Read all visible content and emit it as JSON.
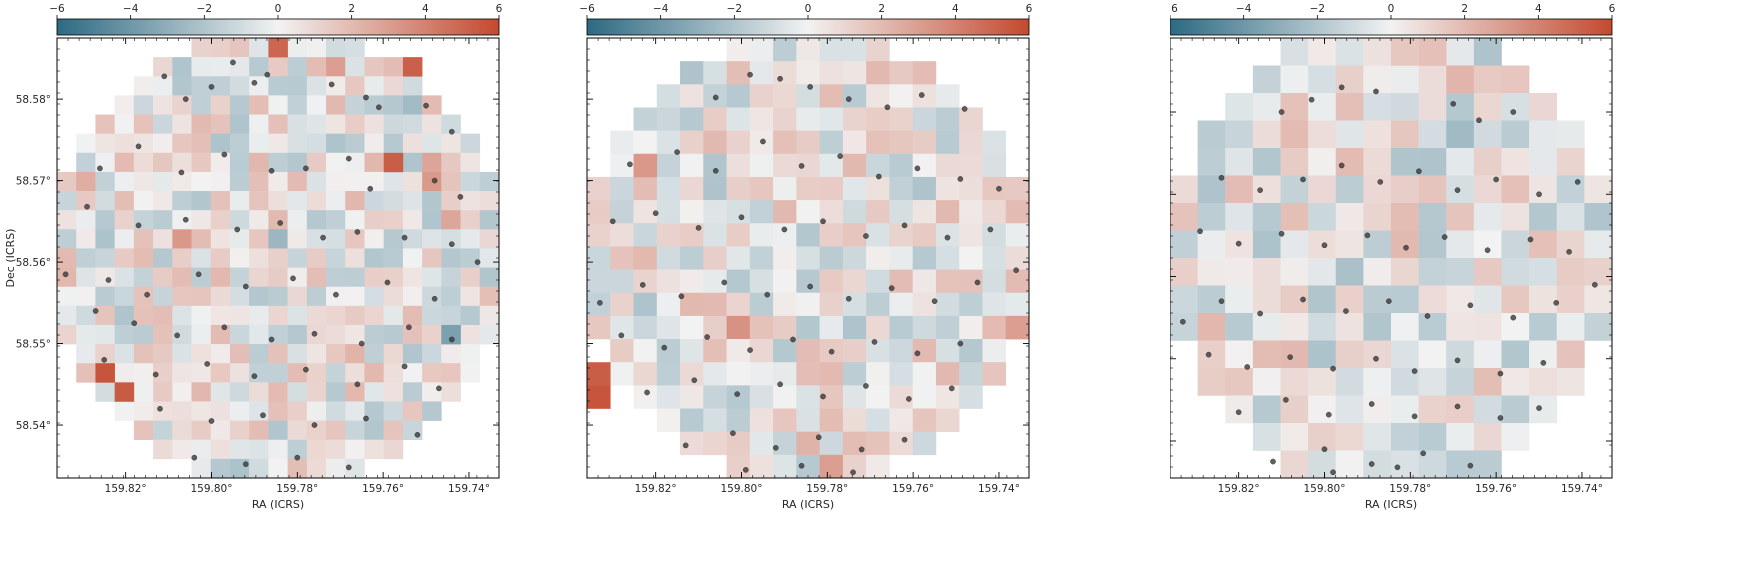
{
  "colors": {
    "low": "#2c6a82",
    "mid": "#f2f2f2",
    "high": "#c34a2f",
    "dot": "#3a3a3a"
  },
  "chart_data": [
    {
      "type": "heatmap",
      "panel": "left",
      "title": "",
      "xlabel": "RA (ICRS)",
      "ylabel": "Dec (ICRS)",
      "xlim": [
        159.836,
        159.733
      ],
      "ylim": [
        58.5335,
        58.5875
      ],
      "x_ticks": [
        159.82,
        159.8,
        159.78,
        159.76,
        159.74
      ],
      "x_tick_labels": [
        "159.82°",
        "159.80°",
        "159.78°",
        "159.76°",
        "159.74°"
      ],
      "y_ticks": [
        58.54,
        58.55,
        58.56,
        58.57,
        58.58
      ],
      "y_tick_labels": [
        "58.54°",
        "58.55°",
        "58.56°",
        "58.57°",
        "58.58°"
      ],
      "colorbar": {
        "orientation": "horizontal",
        "location": "top",
        "range": [
          -6,
          6
        ],
        "ticks": [
          -6,
          -4,
          -2,
          0,
          2,
          4,
          6
        ],
        "tick_labels": [
          "−6",
          "−4",
          "−2",
          "0",
          "2",
          "4",
          "6"
        ]
      },
      "grid_cells": [
        23,
        23
      ],
      "highlights": [
        {
          "ra": 159.7845,
          "dec": 58.5865,
          "value": 5.0
        },
        {
          "ra": 159.753,
          "dec": 58.5845,
          "value": 5.2
        },
        {
          "ra": 159.7565,
          "dec": 58.5715,
          "value": 5.3
        },
        {
          "ra": 159.8235,
          "dec": 58.5455,
          "value": 5.6
        },
        {
          "ra": 159.82,
          "dec": 58.5435,
          "value": 5.4
        },
        {
          "ra": 159.7425,
          "dec": 58.551,
          "value": -3.6
        }
      ],
      "points": [
        {
          "ra": 159.811,
          "dec": 58.5828
        },
        {
          "ra": 159.8,
          "dec": 58.5815
        },
        {
          "ra": 159.795,
          "dec": 58.5845
        },
        {
          "ra": 159.79,
          "dec": 58.582
        },
        {
          "ra": 159.772,
          "dec": 58.5818
        },
        {
          "ra": 159.764,
          "dec": 58.5802
        },
        {
          "ra": 159.761,
          "dec": 58.579
        },
        {
          "ra": 159.75,
          "dec": 58.5792
        },
        {
          "ra": 159.744,
          "dec": 58.576
        },
        {
          "ra": 159.806,
          "dec": 58.58
        },
        {
          "ra": 159.787,
          "dec": 58.583
        },
        {
          "ra": 159.826,
          "dec": 58.5715
        },
        {
          "ra": 159.817,
          "dec": 58.5742
        },
        {
          "ra": 159.807,
          "dec": 58.571
        },
        {
          "ra": 159.797,
          "dec": 58.5732
        },
        {
          "ra": 159.786,
          "dec": 58.5712
        },
        {
          "ra": 159.778,
          "dec": 58.5715
        },
        {
          "ra": 159.768,
          "dec": 58.5727
        },
        {
          "ra": 159.763,
          "dec": 58.569
        },
        {
          "ra": 159.748,
          "dec": 58.57
        },
        {
          "ra": 159.742,
          "dec": 58.568
        },
        {
          "ra": 159.829,
          "dec": 58.5668
        },
        {
          "ra": 159.817,
          "dec": 58.5645
        },
        {
          "ra": 159.806,
          "dec": 58.5652
        },
        {
          "ra": 159.794,
          "dec": 58.564
        },
        {
          "ra": 159.784,
          "dec": 58.5648
        },
        {
          "ra": 159.774,
          "dec": 58.563
        },
        {
          "ra": 159.766,
          "dec": 58.5637
        },
        {
          "ra": 159.755,
          "dec": 58.563
        },
        {
          "ra": 159.744,
          "dec": 58.5622
        },
        {
          "ra": 159.834,
          "dec": 58.5585
        },
        {
          "ra": 159.824,
          "dec": 58.5578
        },
        {
          "ra": 159.815,
          "dec": 58.556
        },
        {
          "ra": 159.803,
          "dec": 58.5585
        },
        {
          "ra": 159.792,
          "dec": 58.557
        },
        {
          "ra": 159.781,
          "dec": 58.558
        },
        {
          "ra": 159.771,
          "dec": 58.556
        },
        {
          "ra": 159.759,
          "dec": 58.5575
        },
        {
          "ra": 159.748,
          "dec": 58.5555
        },
        {
          "ra": 159.738,
          "dec": 58.56
        },
        {
          "ra": 159.827,
          "dec": 58.554
        },
        {
          "ra": 159.818,
          "dec": 58.5525
        },
        {
          "ra": 159.808,
          "dec": 58.551
        },
        {
          "ra": 159.797,
          "dec": 58.552
        },
        {
          "ra": 159.786,
          "dec": 58.5505
        },
        {
          "ra": 159.776,
          "dec": 58.5512
        },
        {
          "ra": 159.765,
          "dec": 58.55
        },
        {
          "ra": 159.754,
          "dec": 58.552
        },
        {
          "ra": 159.744,
          "dec": 58.5505
        },
        {
          "ra": 159.825,
          "dec": 58.548
        },
        {
          "ra": 159.813,
          "dec": 58.5462
        },
        {
          "ra": 159.801,
          "dec": 58.5475
        },
        {
          "ra": 159.79,
          "dec": 58.546
        },
        {
          "ra": 159.778,
          "dec": 58.5468
        },
        {
          "ra": 159.766,
          "dec": 58.545
        },
        {
          "ra": 159.755,
          "dec": 58.5472
        },
        {
          "ra": 159.747,
          "dec": 58.5445
        },
        {
          "ra": 159.812,
          "dec": 58.542
        },
        {
          "ra": 159.8,
          "dec": 58.5405
        },
        {
          "ra": 159.788,
          "dec": 58.5412
        },
        {
          "ra": 159.776,
          "dec": 58.54
        },
        {
          "ra": 159.764,
          "dec": 58.5408
        },
        {
          "ra": 159.752,
          "dec": 58.5388
        },
        {
          "ra": 159.804,
          "dec": 58.536
        },
        {
          "ra": 159.792,
          "dec": 58.5352
        },
        {
          "ra": 159.78,
          "dec": 58.536
        },
        {
          "ra": 159.768,
          "dec": 58.5348
        }
      ]
    },
    {
      "type": "heatmap",
      "panel": "middle",
      "title": "",
      "xlabel": "RA (ICRS)",
      "ylabel": "Dec (ICRS)",
      "xlim": [
        159.836,
        159.733
      ],
      "ylim": [
        58.5335,
        58.5875
      ],
      "x_ticks": [
        159.82,
        159.8,
        159.78,
        159.76,
        159.74
      ],
      "x_tick_labels": [
        "159.82°",
        "159.80°",
        "159.78°",
        "159.76°",
        "159.74°"
      ],
      "y_ticks": [
        58.54,
        58.55,
        58.56,
        58.57,
        58.58
      ],
      "y_tick_labels": [
        "58.54°",
        "58.55°",
        "58.56°",
        "58.57°",
        "58.58°"
      ],
      "colorbar": {
        "orientation": "horizontal",
        "location": "top",
        "range": [
          -6,
          6
        ],
        "ticks": [
          -6,
          -4,
          -2,
          0,
          2,
          4,
          6
        ],
        "tick_labels": [
          "−6",
          "−4",
          "−2",
          "0",
          "2",
          "4",
          "6"
        ]
      },
      "grid_cells": [
        19,
        19
      ],
      "highlights": [
        {
          "ra": 159.8335,
          "dec": 58.5445,
          "value": 5.6
        },
        {
          "ra": 159.8335,
          "dec": 58.5465,
          "value": 5.3
        },
        {
          "ra": 159.825,
          "dec": 58.5715,
          "value": 3.2
        },
        {
          "ra": 159.7355,
          "dec": 58.551,
          "value": 3.0
        }
      ],
      "points": [
        {
          "ra": 159.806,
          "dec": 58.5802
        },
        {
          "ra": 159.798,
          "dec": 58.583
        },
        {
          "ra": 159.791,
          "dec": 58.5825
        },
        {
          "ra": 159.784,
          "dec": 58.5815
        },
        {
          "ra": 159.775,
          "dec": 58.58
        },
        {
          "ra": 159.766,
          "dec": 58.579
        },
        {
          "ra": 159.758,
          "dec": 58.5805
        },
        {
          "ra": 159.748,
          "dec": 58.5788
        },
        {
          "ra": 159.826,
          "dec": 58.572
        },
        {
          "ra": 159.815,
          "dec": 58.5735
        },
        {
          "ra": 159.806,
          "dec": 58.5712
        },
        {
          "ra": 159.795,
          "dec": 58.5748
        },
        {
          "ra": 159.786,
          "dec": 58.5718
        },
        {
          "ra": 159.777,
          "dec": 58.573
        },
        {
          "ra": 159.768,
          "dec": 58.5705
        },
        {
          "ra": 159.759,
          "dec": 58.5715
        },
        {
          "ra": 159.749,
          "dec": 58.5702
        },
        {
          "ra": 159.74,
          "dec": 58.569
        },
        {
          "ra": 159.83,
          "dec": 58.565
        },
        {
          "ra": 159.82,
          "dec": 58.566
        },
        {
          "ra": 159.81,
          "dec": 58.5642
        },
        {
          "ra": 159.8,
          "dec": 58.5655
        },
        {
          "ra": 159.79,
          "dec": 58.564
        },
        {
          "ra": 159.781,
          "dec": 58.565
        },
        {
          "ra": 159.771,
          "dec": 58.5632
        },
        {
          "ra": 159.762,
          "dec": 58.5645
        },
        {
          "ra": 159.752,
          "dec": 58.563
        },
        {
          "ra": 159.742,
          "dec": 58.564
        },
        {
          "ra": 159.833,
          "dec": 58.555
        },
        {
          "ra": 159.823,
          "dec": 58.5572
        },
        {
          "ra": 159.814,
          "dec": 58.5558
        },
        {
          "ra": 159.804,
          "dec": 58.5575
        },
        {
          "ra": 159.794,
          "dec": 58.556
        },
        {
          "ra": 159.784,
          "dec": 58.557
        },
        {
          "ra": 159.775,
          "dec": 58.5555
        },
        {
          "ra": 159.765,
          "dec": 58.5568
        },
        {
          "ra": 159.755,
          "dec": 58.5552
        },
        {
          "ra": 159.745,
          "dec": 58.5575
        },
        {
          "ra": 159.736,
          "dec": 58.559
        },
        {
          "ra": 159.828,
          "dec": 58.551
        },
        {
          "ra": 159.818,
          "dec": 58.5495
        },
        {
          "ra": 159.808,
          "dec": 58.5508
        },
        {
          "ra": 159.798,
          "dec": 58.5492
        },
        {
          "ra": 159.788,
          "dec": 58.5505
        },
        {
          "ra": 159.779,
          "dec": 58.549
        },
        {
          "ra": 159.769,
          "dec": 58.5502
        },
        {
          "ra": 159.759,
          "dec": 58.5488
        },
        {
          "ra": 159.749,
          "dec": 58.55
        },
        {
          "ra": 159.822,
          "dec": 58.544
        },
        {
          "ra": 159.811,
          "dec": 58.5455
        },
        {
          "ra": 159.801,
          "dec": 58.5438
        },
        {
          "ra": 159.791,
          "dec": 58.545
        },
        {
          "ra": 159.781,
          "dec": 58.5435
        },
        {
          "ra": 159.771,
          "dec": 58.5448
        },
        {
          "ra": 159.761,
          "dec": 58.5432
        },
        {
          "ra": 159.751,
          "dec": 58.5445
        },
        {
          "ra": 159.813,
          "dec": 58.5375
        },
        {
          "ra": 159.802,
          "dec": 58.539
        },
        {
          "ra": 159.792,
          "dec": 58.5372
        },
        {
          "ra": 159.782,
          "dec": 58.5385
        },
        {
          "ra": 159.772,
          "dec": 58.537
        },
        {
          "ra": 159.762,
          "dec": 58.5382
        },
        {
          "ra": 159.799,
          "dec": 58.5345
        },
        {
          "ra": 159.786,
          "dec": 58.535
        },
        {
          "ra": 159.774,
          "dec": 58.5342
        }
      ]
    },
    {
      "type": "heatmap",
      "panel": "right",
      "title": "",
      "xlabel": "RA (ICRS)",
      "ylabel": "Dec (ICRS)",
      "xlim": [
        159.836,
        159.733
      ],
      "ylim": [
        58.5355,
        58.589
      ],
      "x_ticks": [
        159.82,
        159.8,
        159.78,
        159.76,
        159.74
      ],
      "x_tick_labels": [
        "159.82°",
        "159.80°",
        "159.78°",
        "159.76°",
        "159.74°"
      ],
      "y_ticks": [
        58.54,
        58.55,
        58.56,
        58.57,
        58.58
      ],
      "y_tick_labels": [
        "58.54°",
        "58.55°",
        "58.56°",
        "58.57°",
        "58.58°"
      ],
      "colorbar": {
        "orientation": "horizontal",
        "location": "top",
        "range": [
          -6,
          6
        ],
        "ticks": [
          -6,
          -4,
          -2,
          0,
          2,
          4,
          6
        ],
        "tick_labels": [
          "−6",
          "−4",
          "−2",
          "0",
          "2",
          "4",
          "6"
        ]
      },
      "grid_cells": [
        16,
        16
      ],
      "highlights": [
        {
          "ra": 159.777,
          "dec": 58.587,
          "value": 1.8
        },
        {
          "ra": 159.7835,
          "dec": 58.587,
          "value": 1.5
        },
        {
          "ra": 159.815,
          "dec": 58.5685,
          "value": -1.8
        }
      ],
      "points": [
        {
          "ra": 159.81,
          "dec": 58.58
        },
        {
          "ra": 159.803,
          "dec": 58.5815
        },
        {
          "ra": 159.796,
          "dec": 58.583
        },
        {
          "ra": 159.788,
          "dec": 58.5825
        },
        {
          "ra": 159.77,
          "dec": 58.581
        },
        {
          "ra": 159.764,
          "dec": 58.579
        },
        {
          "ra": 159.756,
          "dec": 58.58
        },
        {
          "ra": 159.824,
          "dec": 58.572
        },
        {
          "ra": 159.815,
          "dec": 58.5705
        },
        {
          "ra": 159.805,
          "dec": 58.5718
        },
        {
          "ra": 159.796,
          "dec": 58.5735
        },
        {
          "ra": 159.787,
          "dec": 58.5715
        },
        {
          "ra": 159.778,
          "dec": 58.5728
        },
        {
          "ra": 159.769,
          "dec": 58.5705
        },
        {
          "ra": 159.76,
          "dec": 58.5718
        },
        {
          "ra": 159.75,
          "dec": 58.57
        },
        {
          "ra": 159.741,
          "dec": 58.5715
        },
        {
          "ra": 159.829,
          "dec": 58.5655
        },
        {
          "ra": 159.82,
          "dec": 58.564
        },
        {
          "ra": 159.81,
          "dec": 58.5652
        },
        {
          "ra": 159.8,
          "dec": 58.5638
        },
        {
          "ra": 159.79,
          "dec": 58.565
        },
        {
          "ra": 159.781,
          "dec": 58.5635
        },
        {
          "ra": 159.772,
          "dec": 58.5648
        },
        {
          "ra": 159.762,
          "dec": 58.5632
        },
        {
          "ra": 159.752,
          "dec": 58.5645
        },
        {
          "ra": 159.743,
          "dec": 58.563
        },
        {
          "ra": 159.833,
          "dec": 58.5545
        },
        {
          "ra": 159.824,
          "dec": 58.557
        },
        {
          "ra": 159.815,
          "dec": 58.5555
        },
        {
          "ra": 159.805,
          "dec": 58.5572
        },
        {
          "ra": 159.795,
          "dec": 58.5558
        },
        {
          "ra": 159.785,
          "dec": 58.557
        },
        {
          "ra": 159.776,
          "dec": 58.5552
        },
        {
          "ra": 159.766,
          "dec": 58.5565
        },
        {
          "ra": 159.756,
          "dec": 58.555
        },
        {
          "ra": 159.746,
          "dec": 58.5568
        },
        {
          "ra": 159.737,
          "dec": 58.559
        },
        {
          "ra": 159.827,
          "dec": 58.5505
        },
        {
          "ra": 159.818,
          "dec": 58.549
        },
        {
          "ra": 159.808,
          "dec": 58.5502
        },
        {
          "ra": 159.798,
          "dec": 58.5488
        },
        {
          "ra": 159.788,
          "dec": 58.55
        },
        {
          "ra": 159.779,
          "dec": 58.5485
        },
        {
          "ra": 159.769,
          "dec": 58.5498
        },
        {
          "ra": 159.759,
          "dec": 58.5482
        },
        {
          "ra": 159.749,
          "dec": 58.5495
        },
        {
          "ra": 159.82,
          "dec": 58.5435
        },
        {
          "ra": 159.809,
          "dec": 58.545
        },
        {
          "ra": 159.799,
          "dec": 58.5432
        },
        {
          "ra": 159.789,
          "dec": 58.5445
        },
        {
          "ra": 159.779,
          "dec": 58.543
        },
        {
          "ra": 159.769,
          "dec": 58.5442
        },
        {
          "ra": 159.759,
          "dec": 58.5428
        },
        {
          "ra": 159.75,
          "dec": 58.544
        },
        {
          "ra": 159.812,
          "dec": 58.5375
        },
        {
          "ra": 159.8,
          "dec": 58.539
        },
        {
          "ra": 159.789,
          "dec": 58.5372
        },
        {
          "ra": 159.777,
          "dec": 58.5385
        },
        {
          "ra": 159.766,
          "dec": 58.537
        },
        {
          "ra": 159.798,
          "dec": 58.5362
        },
        {
          "ra": 159.783,
          "dec": 58.5368
        }
      ]
    }
  ]
}
